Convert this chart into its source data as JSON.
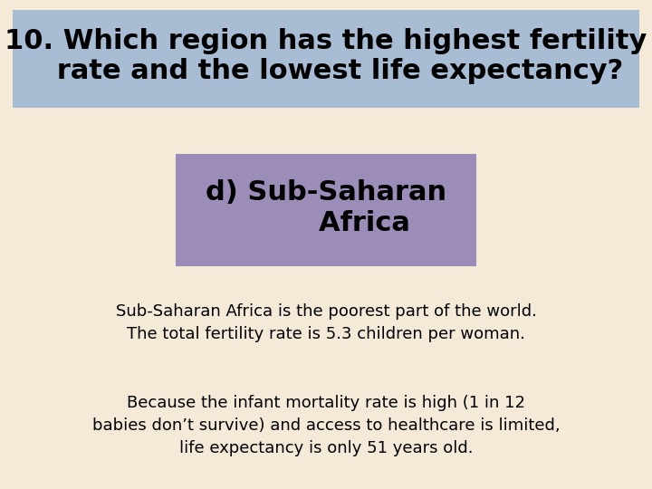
{
  "background_color": "#f5ead8",
  "title_box_color": "#a8bcd4",
  "answer_box_color": "#9b8db8",
  "title_text": "10. Which region has the highest fertility\n   rate and the lowest life expectancy?",
  "answer_text": "d) Sub-Saharan\n        Africa",
  "body_text_1": "Sub-Saharan Africa is the poorest part of the world.\nThe total fertility rate is 5.3 children per woman.",
  "body_text_2": "Because the infant mortality rate is high (1 in 12\nbabies don’t survive) and access to healthcare is limited,\nlife expectancy is only 51 years old.",
  "title_fontsize": 22,
  "answer_fontsize": 22,
  "body_fontsize": 13
}
